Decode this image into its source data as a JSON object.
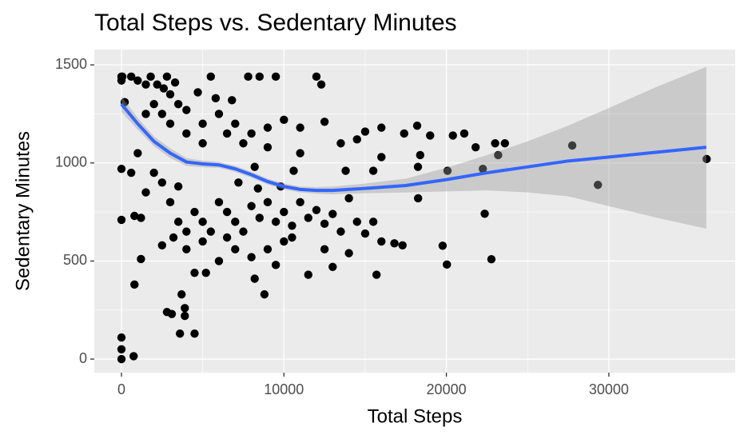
{
  "chart_data": {
    "type": "scatter",
    "title": "Total Steps vs. Sedentary Minutes",
    "x_label": "Total Steps",
    "y_label": "Sedentary Minutes",
    "xlim": [
      -1672,
      37777
    ],
    "ylim": [
      -69,
      1578
    ],
    "xticks": [
      0,
      10000,
      20000,
      30000
    ],
    "yticks": [
      0,
      500,
      1000,
      1500
    ],
    "grid": true,
    "series": [
      {
        "color": "#000000",
        "x": [
          36019,
          29326,
          27745,
          22770,
          22359,
          22244,
          23186,
          20031,
          19769,
          20067,
          18258,
          18250,
          18387,
          17400,
          16000,
          20400,
          21100,
          23600,
          23000,
          21800,
          19000,
          18200,
          0,
          50,
          0,
          0,
          0,
          0,
          750,
          4500,
          3600,
          3900,
          3900,
          3100,
          2800,
          800,
          3700,
          1200,
          0,
          0,
          200,
          600,
          1000,
          1500,
          2200,
          2600,
          3000,
          3500,
          4000,
          5000,
          5500,
          7800,
          8500,
          9500,
          12000,
          6000,
          7000,
          8000,
          9000,
          10000,
          11000,
          12500,
          13500,
          14500,
          15000,
          16000,
          15500,
          11000,
          9000,
          7500,
          6500,
          5000,
          4000,
          3000,
          2500,
          2000,
          1500,
          1000,
          600,
          800,
          1200,
          1500,
          2500,
          3000,
          3500,
          4000,
          4500,
          5000,
          5500,
          6000,
          6500,
          7000,
          7500,
          8000,
          8500,
          9000,
          9500,
          10000,
          10500,
          11000,
          11500,
          12000,
          12500,
          13000,
          13500,
          14000,
          14500,
          15000,
          15500,
          16000,
          16800,
          17300,
          15700,
          14000,
          13000,
          12500,
          11500,
          10000,
          9000,
          8000,
          7000,
          6000,
          5000,
          4000,
          3200,
          2500,
          9500,
          8800,
          8200,
          10500,
          6500,
          4500,
          5200,
          7200,
          8400,
          9800,
          2000,
          3500,
          5800,
          6800,
          4700,
          1800,
          2800,
          3300,
          12300,
          13800,
          8200,
          10600
        ],
        "values": [
          1020,
          888,
          1089,
          509,
          741,
          970,
          1040,
          482,
          578,
          960,
          820,
          980,
          1040,
          1150,
          1180,
          1140,
          1150,
          1100,
          1100,
          1080,
          1140,
          1190,
          1440,
          1440,
          1420,
          110,
          50,
          0,
          15,
          130,
          130,
          260,
          220,
          230,
          240,
          380,
          330,
          510,
          970,
          710,
          1310,
          1440,
          1420,
          1400,
          1400,
          1380,
          1350,
          1300,
          1270,
          1200,
          1440,
          1440,
          1440,
          1440,
          1440,
          1250,
          1200,
          1150,
          1180,
          1220,
          1180,
          1210,
          1100,
          1120,
          1160,
          1030,
          960,
          1050,
          1080,
          1100,
          1150,
          1100,
          1150,
          1200,
          1250,
          1300,
          1250,
          1050,
          950,
          730,
          720,
          850,
          900,
          800,
          700,
          650,
          750,
          700,
          650,
          800,
          750,
          700,
          650,
          780,
          720,
          800,
          700,
          750,
          680,
          800,
          720,
          760,
          690,
          740,
          650,
          820,
          700,
          640,
          700,
          600,
          590,
          580,
          430,
          540,
          470,
          560,
          430,
          600,
          560,
          520,
          560,
          500,
          600,
          560,
          620,
          580,
          480,
          330,
          410,
          620,
          620,
          440,
          440,
          900,
          870,
          880,
          950,
          880,
          1330,
          1320,
          1360,
          1440,
          1440,
          1410,
          1400,
          960,
          980,
          960
        ]
      }
    ],
    "smooth": {
      "color": "#3366ff",
      "x": [
        0,
        1000,
        2000,
        3000,
        4000,
        5000,
        6000,
        7000,
        8000,
        9000,
        10000,
        11000,
        12000,
        13000,
        14000,
        15000,
        17500,
        20000,
        22500,
        25000,
        27500,
        30000,
        33000,
        36000
      ],
      "y": [
        1300,
        1200,
        1110,
        1050,
        1005,
        995,
        990,
        970,
        940,
        905,
        880,
        865,
        860,
        860,
        865,
        870,
        885,
        915,
        950,
        980,
        1010,
        1030,
        1055,
        1080
      ],
      "lower": [
        1260,
        1170,
        1085,
        1025,
        985,
        978,
        975,
        955,
        925,
        890,
        865,
        850,
        843,
        840,
        843,
        845,
        850,
        855,
        860,
        850,
        830,
        780,
        720,
        665
      ],
      "upper": [
        1340,
        1230,
        1135,
        1075,
        1025,
        1012,
        1005,
        985,
        955,
        920,
        895,
        880,
        877,
        880,
        887,
        895,
        920,
        975,
        1040,
        1110,
        1190,
        1280,
        1390,
        1490
      ]
    }
  }
}
